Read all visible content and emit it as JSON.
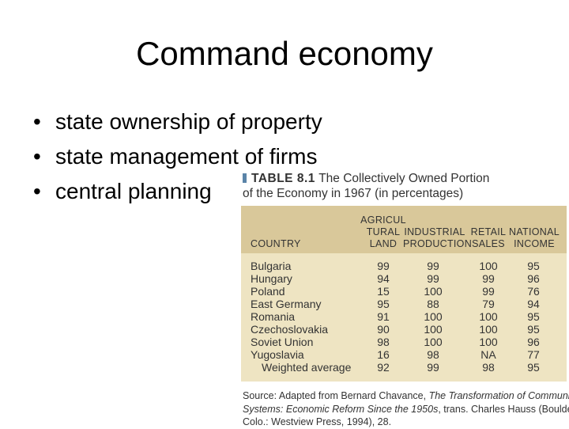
{
  "slide": {
    "title": "Command economy",
    "bullets": [
      "state ownership of property",
      "state management of firms",
      "central planning"
    ]
  },
  "table": {
    "number": "TABLE 8.1",
    "caption_line1": "The Collectively Owned Portion",
    "caption_line2": "of the Economy in 1967 (in percentages)",
    "headers": {
      "country": "COUNTRY",
      "agricultural_line1": "AGRICUL",
      "agricultural_line2": "TURAL",
      "agricultural_line3": "LAND",
      "industrial_line1": "INDUSTRIAL",
      "industrial_line2": "PRODUCTION",
      "retail_line1": "RETAIL",
      "retail_line2": "SALES",
      "national_line1": "NATIONAL",
      "national_line2": "INCOME"
    },
    "rows": [
      {
        "country": "Bulgaria",
        "agri": "99",
        "industrial": "99",
        "retail": "100",
        "national": "95"
      },
      {
        "country": "Hungary",
        "agri": "94",
        "industrial": "99",
        "retail": "99",
        "national": "96"
      },
      {
        "country": "Poland",
        "agri": "15",
        "industrial": "100",
        "retail": "99",
        "national": "76"
      },
      {
        "country": "East Germany",
        "agri": "95",
        "industrial": "88",
        "retail": "79",
        "national": "94"
      },
      {
        "country": "Romania",
        "agri": "91",
        "industrial": "100",
        "retail": "100",
        "national": "95"
      },
      {
        "country": "Czechoslovakia",
        "agri": "90",
        "industrial": "100",
        "retail": "100",
        "national": "95"
      },
      {
        "country": "Soviet Union",
        "agri": "98",
        "industrial": "100",
        "retail": "100",
        "national": "96"
      },
      {
        "country": "Yugoslavia",
        "agri": "16",
        "industrial": "98",
        "retail": "NA",
        "national": "77"
      },
      {
        "country": "Weighted average",
        "agri": "92",
        "industrial": "99",
        "retail": "98",
        "national": "95"
      }
    ],
    "source_prefix": "Source: Adapted from Bernard Chavance, ",
    "source_title_line1": "The Transformation of Communist",
    "source_title_line2": "Systems: Economic Reform Since the 1950s",
    "source_rest_line2": ", trans. Charles Hauss (Boulder,",
    "source_line3": "Colo.: Westview Press, 1994), 28."
  }
}
